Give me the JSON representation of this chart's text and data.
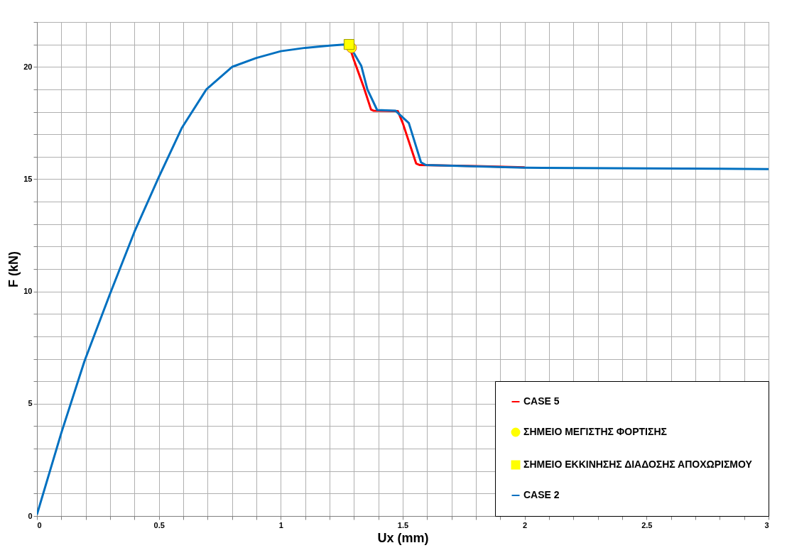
{
  "chart_data": {
    "type": "line",
    "xlabel": "Ux (mm)",
    "ylabel": "F (kN)",
    "xlim": [
      0,
      3
    ],
    "ylim": [
      0,
      22
    ],
    "xticks": [
      0,
      {
        "value": 0.1,
        "label": null
      },
      {
        "value": 0.2,
        "label": null
      },
      {
        "value": 0.3,
        "label": null
      },
      {
        "value": 0.4,
        "label": null
      },
      0.5,
      {
        "value": 0.6,
        "label": null
      },
      {
        "value": 0.7,
        "label": null
      },
      {
        "value": 0.8,
        "label": null
      },
      {
        "value": 0.9,
        "label": null
      },
      1,
      {
        "value": 1.1,
        "label": null
      },
      {
        "value": 1.2,
        "label": null
      },
      {
        "value": 1.3,
        "label": null
      },
      {
        "value": 1.4,
        "label": null
      },
      1.5,
      {
        "value": 1.6,
        "label": null
      },
      {
        "value": 1.7,
        "label": null
      },
      {
        "value": 1.8,
        "label": null
      },
      {
        "value": 1.9,
        "label": null
      },
      2,
      {
        "value": 2.1,
        "label": null
      },
      {
        "value": 2.2,
        "label": null
      },
      {
        "value": 2.3,
        "label": null
      },
      {
        "value": 2.4,
        "label": null
      },
      2.5,
      {
        "value": 2.6,
        "label": null
      },
      {
        "value": 2.7,
        "label": null
      },
      {
        "value": 2.8,
        "label": null
      },
      {
        "value": 2.9,
        "label": null
      },
      3
    ],
    "yticks": [
      0,
      {
        "value": 1,
        "label": null
      },
      {
        "value": 2,
        "label": null
      },
      {
        "value": 3,
        "label": null
      },
      {
        "value": 4,
        "label": null
      },
      5,
      {
        "value": 6,
        "label": null
      },
      {
        "value": 7,
        "label": null
      },
      {
        "value": 8,
        "label": null
      },
      {
        "value": 9,
        "label": null
      },
      10,
      {
        "value": 11,
        "label": null
      },
      {
        "value": 12,
        "label": null
      },
      {
        "value": 13,
        "label": null
      },
      {
        "value": 14,
        "label": null
      },
      15,
      {
        "value": 16,
        "label": null
      },
      {
        "value": 17,
        "label": null
      },
      {
        "value": 18,
        "label": null
      },
      {
        "value": 19,
        "label": null
      },
      20,
      {
        "value": 21,
        "label": null
      },
      {
        "value": 22,
        "label": null
      }
    ],
    "grid": true,
    "legend": "bottom right",
    "series": [
      {
        "name": "CASE 5",
        "color": "#ff0000",
        "x": [
          1.283,
          1.3,
          1.34,
          1.37,
          1.38,
          1.48,
          1.5,
          1.555,
          1.57,
          1.8,
          2.0
        ],
        "values": [
          20.85,
          20.3,
          19.1,
          18.1,
          18.05,
          18.03,
          17.5,
          15.7,
          15.63,
          15.58,
          15.53
        ]
      },
      {
        "name": "ΣΗΜΕΙΟ ΜΕΓΙΣΤΗΣ ΦΟΡΤΙΣΗΣ",
        "type": "scatter",
        "marker": "circle",
        "color": "#ffff00",
        "x": [
          1.29
        ],
        "values": [
          20.85
        ]
      },
      {
        "name": "ΣΗΜΕΙΟ ΕΚΚΙΝΗΣΗΣ ΔΙΑΔΟΣΗΣ ΑΠΟΧΩΡΙΣΜΟΥ",
        "type": "scatter",
        "marker": "square",
        "color": "#ffff00",
        "x": [
          1.28
        ],
        "values": [
          21.0
        ]
      },
      {
        "name": "CASE 2",
        "color": "#0070c0",
        "x": [
          0,
          0.1,
          0.195,
          0.3,
          0.4,
          0.5,
          0.595,
          0.695,
          0.8,
          0.9,
          1.0,
          1.1,
          1.2,
          1.26,
          1.29,
          1.33,
          1.355,
          1.395,
          1.47,
          1.525,
          1.575,
          1.595,
          2.0,
          2.5,
          3.0
        ],
        "values": [
          0.06,
          3.7,
          6.9,
          9.9,
          12.66,
          15.1,
          17.3,
          19.0,
          20.0,
          20.4,
          20.7,
          20.85,
          20.95,
          21.0,
          20.8,
          20.05,
          19.0,
          18.08,
          18.05,
          17.5,
          15.75,
          15.63,
          15.51,
          15.48,
          15.45
        ]
      }
    ]
  }
}
